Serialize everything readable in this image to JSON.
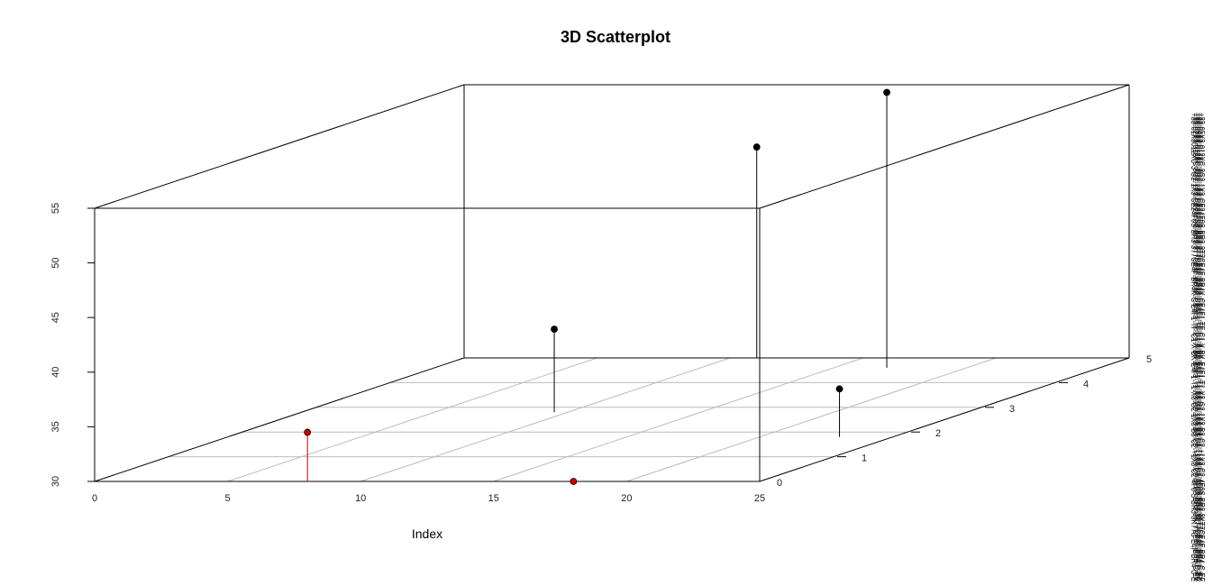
{
  "chart_data": {
    "type": "scatter",
    "title": "3D Scatterplot",
    "xlabel": "Index",
    "ylabel": "",
    "xlim": [
      0,
      25
    ],
    "ylim": [
      0,
      5
    ],
    "zlim": [
      30,
      55
    ],
    "x_ticks": [
      "0",
      "5",
      "10",
      "15",
      "20",
      "25"
    ],
    "y_ticks": [
      "0",
      "1",
      "2",
      "3",
      "4",
      "5"
    ],
    "z_ticks": [
      "30",
      "35",
      "40",
      "45",
      "50",
      "55"
    ],
    "grid": true,
    "points": [
      {
        "x": 8,
        "y": 0,
        "z": 34.5,
        "color": "#cc0000"
      },
      {
        "x": 18,
        "y": 0,
        "z": 30,
        "color": "#cc0000"
      },
      {
        "x": 9.5,
        "y": 2.8,
        "z": 37.6,
        "color": "#000000"
      },
      {
        "x": 11,
        "y": 5,
        "z": 49.3,
        "color": "#000000"
      },
      {
        "x": 17,
        "y": 4.6,
        "z": 55.2,
        "color": "#000000"
      },
      {
        "x": 23,
        "y": 1.8,
        "z": 34.4,
        "color": "#000000"
      }
    ]
  },
  "side_label_columns": [
    "+33-01X3012XC-3 G2-1X3-CE24F0S-BR3-3T7CE4F-BR4K-C E4F1-TF-C1-X-BK-E4F1-T1-X3-G2-1X3-B3-C2-+1X3-C2-4F0 S-BR3-3KT7C E4F-BR4-C-E",
    "+33-02X3-012XC-3G2-1X3-CE24F0S-BR3-3T7CE4F-BR4K-CE4F1-TF-C1-X-BK-E4F1-T1-X3-G2-1X3-B3-C2-+1X3-C2-4F0S-BR3-3KT7CE4F-BR4-C-EX",
    "+33-03X3-012XC-3G2-1X3-CE24F0S-BR3-3T7CE4F-BR4K-CE4F1-TF-C1-X-BK-E4F1-T1-X3-G2-1X3-B3-C2-+1X3-C2-4F0S-BR3-3KT7CE4F-BR4-C-EC",
    "+33-04X3-012XC-3G2-1X3-CE24F0S-BR3-3T7CE4F-BR4K-CE4F1-TF-C1-X-BK-E4F1-T1-X3-G2-1X3-B3-C2-+1X3-C2-4F0S-BR3-3KT7CE4F-BR4-C-EK",
    "+33-05X3-012XC-3G2-1X3-CE24F0S-BR3-3T7CE4F-BR4K-CE4F1-TF-C1-X-BK-E4F1-T1-X3-G2-1X3-B3-C2-+1X3-C2-4F0S-BR3-3KT7CE4F-BR4-C-EF"
  ]
}
